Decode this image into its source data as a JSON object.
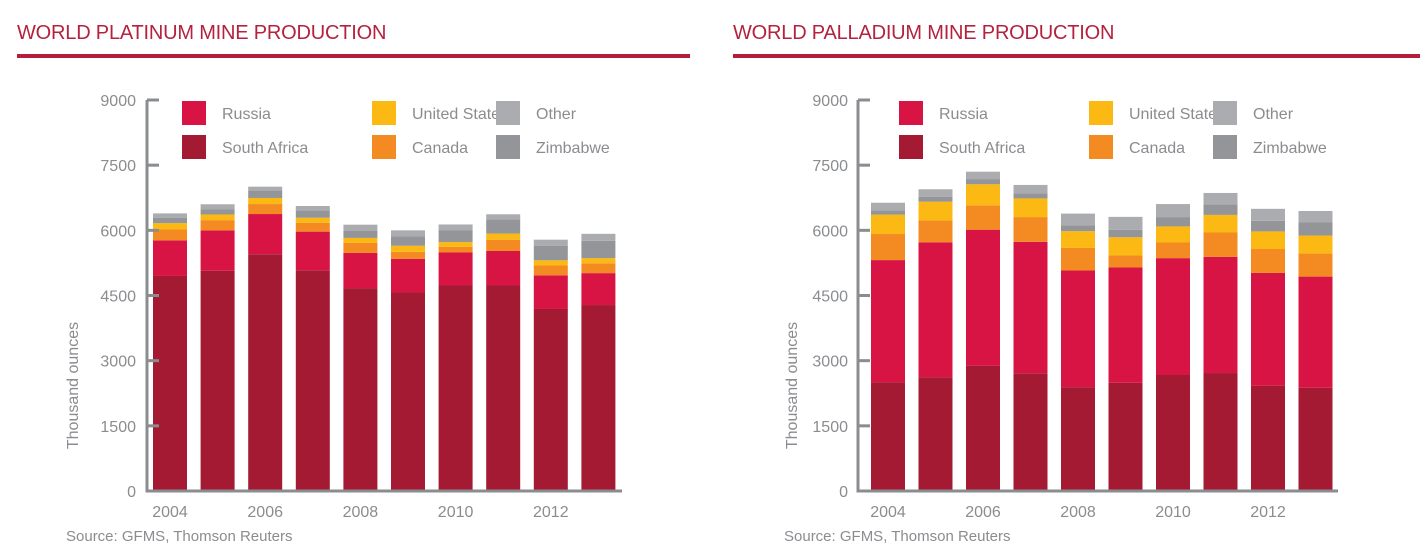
{
  "colors": {
    "South Africa": "#a31a32",
    "Russia": "#d81444",
    "Canada": "#f38b22",
    "United States": "#fdb913",
    "Zimbabwe": "#939598",
    "Other": "#abacaf",
    "heading": "#b5223f",
    "axis": "#8a8c8f"
  },
  "legend_order": [
    [
      "Russia",
      "United States",
      "Other"
    ],
    [
      "South Africa",
      "Canada",
      "Zimbabwe"
    ]
  ],
  "chart_data": [
    {
      "type": "bar",
      "stacked": true,
      "title": "WORLD PLATINUM MINE PRODUCTION",
      "xlabel": "",
      "ylabel": "Thousand ounces",
      "source": "Source: GFMS, Thomson Reuters",
      "ylim": [
        0,
        9000
      ],
      "yticks": [
        "0",
        "1500",
        "3000",
        "4500",
        "6000",
        "7500",
        "9000"
      ],
      "categories": [
        "2004",
        "2005",
        "2006",
        "2007",
        "2008",
        "2009",
        "2010",
        "2011",
        "2012",
        "2013"
      ],
      "xtick_labels": [
        "2004",
        "",
        "2006",
        "",
        "2008",
        "",
        "2010",
        "",
        "2012",
        ""
      ],
      "legend_position": "top-inside",
      "series": [
        {
          "name": "South Africa",
          "values": [
            4950,
            5070,
            5450,
            5080,
            4670,
            4570,
            4730,
            4730,
            4190,
            4280
          ]
        },
        {
          "name": "Russia",
          "values": [
            820,
            930,
            925,
            890,
            810,
            775,
            760,
            795,
            775,
            735
          ]
        },
        {
          "name": "Canada",
          "values": [
            250,
            235,
            230,
            205,
            230,
            160,
            130,
            260,
            225,
            225
          ]
        },
        {
          "name": "United States",
          "values": [
            145,
            130,
            140,
            115,
            115,
            140,
            110,
            140,
            120,
            120
          ]
        },
        {
          "name": "Zimbabwe",
          "values": [
            120,
            115,
            170,
            170,
            160,
            215,
            275,
            330,
            330,
            400
          ]
        },
        {
          "name": "Other",
          "values": [
            105,
            120,
            90,
            100,
            145,
            140,
            130,
            115,
            145,
            160
          ]
        }
      ]
    },
    {
      "type": "bar",
      "stacked": true,
      "title": "WORLD PALLADIUM MINE PRODUCTION",
      "xlabel": "",
      "ylabel": "Thousand ounces",
      "source": "Source: GFMS, Thomson Reuters",
      "ylim": [
        0,
        9000
      ],
      "yticks": [
        "0",
        "1500",
        "3000",
        "4500",
        "6000",
        "7500",
        "9000"
      ],
      "categories": [
        "2004",
        "2005",
        "2006",
        "2007",
        "2008",
        "2009",
        "2010",
        "2011",
        "2012",
        "2013"
      ],
      "xtick_labels": [
        "2004",
        "",
        "2006",
        "",
        "2008",
        "",
        "2010",
        "",
        "2012",
        ""
      ],
      "legend_position": "top-inside",
      "series": [
        {
          "name": "South Africa",
          "values": [
            2500,
            2620,
            2880,
            2710,
            2390,
            2490,
            2670,
            2715,
            2420,
            2375
          ]
        },
        {
          "name": "Russia",
          "values": [
            2815,
            3105,
            3135,
            3025,
            2685,
            2655,
            2690,
            2675,
            2600,
            2560
          ]
        },
        {
          "name": "Canada",
          "values": [
            600,
            500,
            560,
            570,
            520,
            275,
            360,
            560,
            550,
            530
          ]
        },
        {
          "name": "United States",
          "values": [
            445,
            435,
            485,
            430,
            385,
            420,
            370,
            405,
            405,
            415
          ]
        },
        {
          "name": "Zimbabwe",
          "values": [
            100,
            115,
            120,
            120,
            130,
            170,
            215,
            245,
            245,
            300
          ]
        },
        {
          "name": "Other",
          "values": [
            175,
            170,
            170,
            190,
            275,
            300,
            300,
            260,
            275,
            265
          ]
        }
      ]
    }
  ]
}
